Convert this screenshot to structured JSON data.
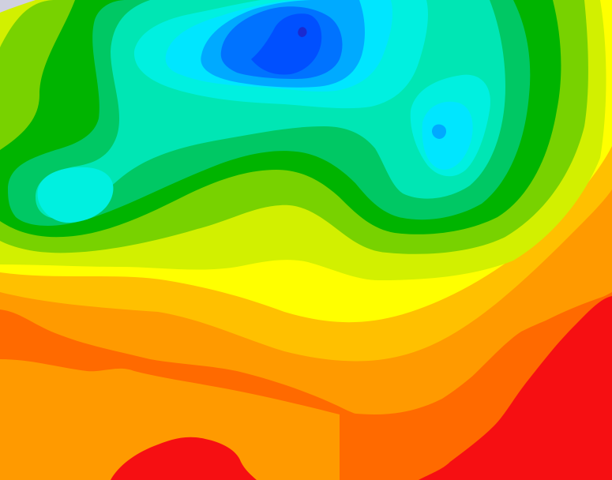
{
  "map": {
    "type": "filled-contour-map",
    "labels_shown": false,
    "color_scale": [
      {
        "level": 1,
        "name": "red",
        "color": "#f60f12"
      },
      {
        "level": 2,
        "name": "red-orange",
        "color": "#ff6a00"
      },
      {
        "level": 3,
        "name": "orange",
        "color": "#ff9a00"
      },
      {
        "level": 4,
        "name": "orange-yellow",
        "color": "#ffc000"
      },
      {
        "level": 5,
        "name": "yellow",
        "color": "#ffff00"
      },
      {
        "level": 6,
        "name": "yellow-green",
        "color": "#d2f000"
      },
      {
        "level": 7,
        "name": "light-green",
        "color": "#78d200"
      },
      {
        "level": 8,
        "name": "green",
        "color": "#00b400"
      },
      {
        "level": 9,
        "name": "medium-green",
        "color": "#00c864"
      },
      {
        "level": 10,
        "name": "teal-green",
        "color": "#00e6b4"
      },
      {
        "level": 11,
        "name": "aqua",
        "color": "#00f0e0"
      },
      {
        "level": 12,
        "name": "cyan",
        "color": "#00e6ff"
      },
      {
        "level": 13,
        "name": "sky-blue",
        "color": "#00aaff"
      },
      {
        "level": 14,
        "name": "blue",
        "color": "#0073ff"
      },
      {
        "level": 15,
        "name": "deep-blue",
        "color": "#0050ff"
      },
      {
        "level": 16,
        "name": "dark-blue",
        "color": "#1a2ad0"
      }
    ],
    "corner_mark_color": "#d0d0e0"
  }
}
